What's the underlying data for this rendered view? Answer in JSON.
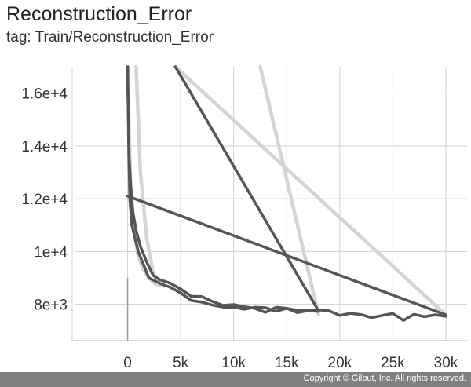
{
  "header": {
    "title": "Reconstruction_Error",
    "subtitle": "tag: Train/Reconstruction_Error"
  },
  "footer": {
    "copyright": "Copyright © Gilbut, Inc. All rights reserved."
  },
  "colors": {
    "series_dark": "#555555",
    "series_light": "#d4d4d4",
    "grid": "#d0d0d0",
    "footer_bg": "#808080"
  },
  "chart_data": {
    "type": "line",
    "title": "",
    "xlabel": "",
    "ylabel": "",
    "xlim": [
      -5000,
      32000
    ],
    "ylim": [
      6800,
      17000
    ],
    "grid": true,
    "x_ticks": [
      0,
      5000,
      10000,
      15000,
      20000,
      25000,
      30000
    ],
    "x_tick_labels": [
      "0",
      "5k",
      "10k",
      "15k",
      "20k",
      "25k",
      "30k"
    ],
    "y_ticks": [
      8000,
      10000,
      12000,
      14000,
      16000
    ],
    "y_tick_labels": [
      "8e+3",
      "1e+4",
      "1.2e+4",
      "1.4e+4",
      "1.6e+4"
    ],
    "series": [
      {
        "style": "light",
        "x": [
          0,
          150,
          300,
          600,
          1000,
          1500,
          2000,
          2500,
          3000
        ],
        "y": [
          17000,
          14500,
          12200,
          10800,
          9800,
          9300,
          9000,
          8800,
          8700
        ]
      },
      {
        "style": "light",
        "x": [
          800,
          1200,
          1800,
          2400,
          3000
        ],
        "y": [
          17000,
          13000,
          10500,
          9200,
          8800
        ]
      },
      {
        "style": "light",
        "x": [
          4500,
          30000
        ],
        "y": [
          17000,
          7600
        ]
      },
      {
        "style": "light",
        "x": [
          12500,
          18000
        ],
        "y": [
          17000,
          7600
        ]
      },
      {
        "style": "dark",
        "x": [
          0,
          100,
          200,
          400,
          700,
          1000,
          1500,
          2000,
          2500,
          3000,
          3500,
          4000,
          5000,
          6000,
          7000,
          8000,
          9000,
          10000,
          11000,
          12000,
          13000,
          14000,
          15000,
          16000,
          17000,
          18000,
          19000,
          20000,
          21000,
          22000,
          23000,
          24000,
          25000,
          26000,
          27000,
          28000,
          29000,
          30000
        ],
        "y": [
          17000,
          14000,
          12000,
          11000,
          10500,
          10000,
          9500,
          9000,
          8900,
          8800,
          8700,
          8600,
          8400,
          8250,
          8100,
          8000,
          7950,
          7900,
          7850,
          7800,
          7800,
          7750,
          7750,
          7700,
          7700,
          7800,
          7650,
          7600,
          7650,
          7600,
          7550,
          7600,
          7550,
          7500,
          7550,
          7500,
          7550,
          7600
        ]
      },
      {
        "style": "dark",
        "x": [
          0,
          150,
          300,
          500,
          800,
          1200,
          1800,
          2400,
          3000,
          4000,
          5000,
          6000,
          7000,
          8000,
          9000,
          10000,
          11000,
          12000,
          13000,
          14000,
          15000,
          16000,
          17000,
          18000
        ],
        "y": [
          16500,
          13500,
          12500,
          11500,
          10800,
          10200,
          9600,
          9100,
          8900,
          8700,
          8500,
          8300,
          8200,
          8100,
          8000,
          7950,
          7900,
          7850,
          7800,
          7800,
          7750,
          7750,
          7700,
          7700
        ]
      },
      {
        "style": "dark",
        "x": [
          0,
          30000
        ],
        "y": [
          12100,
          7600
        ]
      },
      {
        "style": "dark",
        "x": [
          4500,
          18000
        ],
        "y": [
          17000,
          7750
        ]
      }
    ]
  }
}
